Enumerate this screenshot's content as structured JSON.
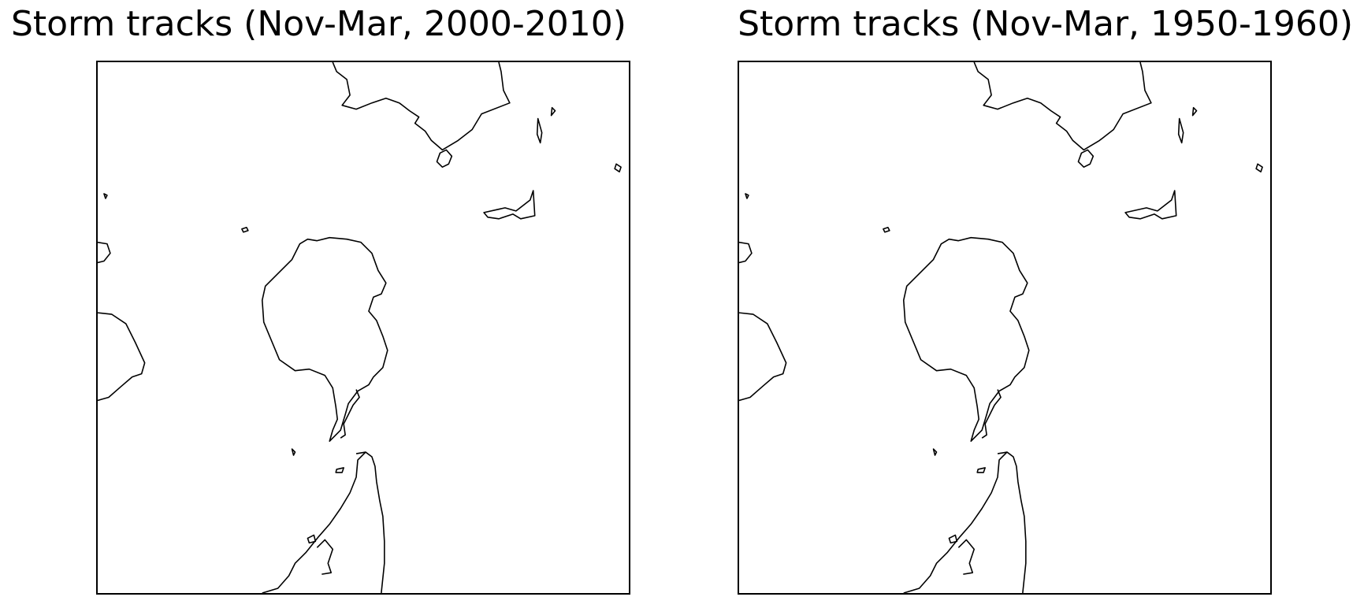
{
  "maps": [
    {
      "title": "Storm tracks (Nov-Mar, 2000-2010)"
    },
    {
      "title": "Storm tracks (Nov-Mar, 1950-1960)"
    }
  ],
  "colors": {
    "coastline": "#000000",
    "background": "#ffffff",
    "frame": "#000000"
  }
}
